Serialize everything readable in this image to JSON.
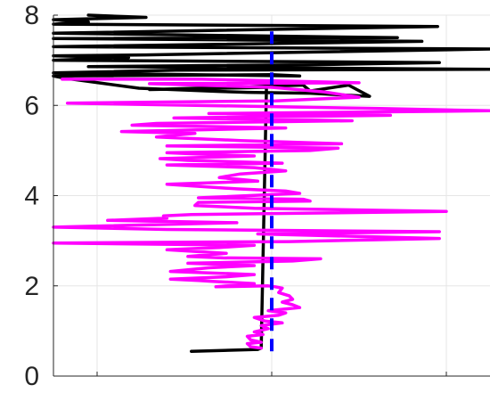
{
  "chart_data": {
    "type": "line",
    "title": "",
    "xlabel": "",
    "ylabel": "",
    "xlim": [
      -1.25,
      1.25
    ],
    "ylim": [
      0,
      8
    ],
    "xticks": [
      -1,
      0,
      1
    ],
    "yticks": [
      0,
      2,
      4,
      6,
      8
    ],
    "ytick_labels": [
      "0",
      "2",
      "4",
      "6",
      "8"
    ],
    "grid": true,
    "legend": "none",
    "series": [
      {
        "color": "#000000",
        "style": "solid",
        "points": [
          [
            -0.46,
            0.55
          ],
          [
            -0.08,
            0.59
          ],
          [
            -0.06,
            0.62
          ],
          [
            -0.03,
            6.4
          ],
          [
            -0.7,
            6.35
          ],
          [
            -0.08,
            6.42
          ],
          [
            0.18,
            6.45
          ],
          [
            0.22,
            6.32
          ],
          [
            0.44,
            6.45
          ],
          [
            0.56,
            6.2
          ],
          [
            0.22,
            6.27
          ],
          [
            -0.14,
            6.29
          ],
          [
            -0.3,
            6.31
          ],
          [
            -0.76,
            6.38
          ],
          [
            -1.18,
            6.6
          ],
          [
            -1.25,
            6.65
          ],
          [
            0.0,
            6.68
          ],
          [
            0.16,
            6.65
          ],
          [
            -1.25,
            6.72
          ],
          [
            -0.9,
            6.75
          ],
          [
            -0.55,
            6.78
          ],
          [
            1.25,
            6.8
          ],
          [
            -1.05,
            6.86
          ],
          [
            0.2,
            6.9
          ],
          [
            0.96,
            6.95
          ],
          [
            -1.25,
            7.0
          ],
          [
            -0.82,
            7.06
          ],
          [
            -1.25,
            7.1
          ],
          [
            -0.72,
            7.12
          ],
          [
            1.25,
            7.25
          ],
          [
            -1.25,
            7.3
          ],
          [
            0.86,
            7.42
          ],
          [
            -1.25,
            7.48
          ],
          [
            0.72,
            7.5
          ],
          [
            -1.25,
            7.6
          ],
          [
            0.95,
            7.75
          ],
          [
            -1.25,
            7.8
          ],
          [
            -1.05,
            7.85
          ],
          [
            -1.25,
            7.9
          ],
          [
            -0.72,
            7.95
          ],
          [
            -1.05,
            8.0
          ]
        ]
      },
      {
        "color": "#ff00ff",
        "style": "solid",
        "points": [
          [
            -0.06,
            0.62
          ],
          [
            -0.12,
            0.65
          ],
          [
            -0.14,
            0.72
          ],
          [
            -0.06,
            0.75
          ],
          [
            -0.12,
            0.8
          ],
          [
            -0.14,
            0.88
          ],
          [
            -0.05,
            0.92
          ],
          [
            -0.1,
            0.98
          ],
          [
            -0.02,
            1.05
          ],
          [
            -0.06,
            1.12
          ],
          [
            0.06,
            1.18
          ],
          [
            -0.04,
            1.22
          ],
          [
            -0.1,
            1.3
          ],
          [
            0.04,
            1.35
          ],
          [
            0.08,
            1.4
          ],
          [
            -0.02,
            1.45
          ],
          [
            0.16,
            1.52
          ],
          [
            0.12,
            1.58
          ],
          [
            0.06,
            1.64
          ],
          [
            0.12,
            1.7
          ],
          [
            0.1,
            1.78
          ],
          [
            0.04,
            1.85
          ],
          [
            0.06,
            1.95
          ],
          [
            0.02,
            1.98
          ],
          [
            -0.02,
            2.0
          ],
          [
            -0.32,
            1.98
          ],
          [
            -0.1,
            2.05
          ],
          [
            -0.34,
            2.1
          ],
          [
            -0.42,
            2.12
          ],
          [
            -0.58,
            2.15
          ],
          [
            -0.26,
            2.2
          ],
          [
            -0.1,
            2.25
          ],
          [
            -0.58,
            2.32
          ],
          [
            -0.36,
            2.4
          ],
          [
            -0.1,
            2.45
          ],
          [
            -0.48,
            2.5
          ],
          [
            0.12,
            2.55
          ],
          [
            0.28,
            2.6
          ],
          [
            -0.28,
            2.62
          ],
          [
            -0.48,
            2.65
          ],
          [
            -0.26,
            2.72
          ],
          [
            -0.6,
            2.8
          ],
          [
            -0.3,
            2.85
          ],
          [
            -0.1,
            2.9
          ],
          [
            -1.25,
            2.95
          ],
          [
            0.1,
            2.98
          ],
          [
            0.96,
            3.05
          ],
          [
            -0.08,
            3.15
          ],
          [
            0.96,
            3.2
          ],
          [
            -0.6,
            3.25
          ],
          [
            -1.25,
            3.3
          ],
          [
            -0.2,
            3.4
          ],
          [
            -0.94,
            3.45
          ],
          [
            -0.6,
            3.5
          ],
          [
            -0.62,
            3.55
          ],
          [
            -0.46,
            3.58
          ],
          [
            1.0,
            3.65
          ],
          [
            -0.1,
            3.72
          ],
          [
            -0.44,
            3.78
          ],
          [
            -0.42,
            3.85
          ],
          [
            0.22,
            3.88
          ],
          [
            0.18,
            3.92
          ],
          [
            -0.42,
            3.95
          ],
          [
            0.16,
            4.05
          ],
          [
            0.08,
            4.1
          ],
          [
            -0.2,
            4.15
          ],
          [
            -0.6,
            4.25
          ],
          [
            -0.08,
            4.32
          ],
          [
            -0.3,
            4.4
          ],
          [
            -0.18,
            4.48
          ],
          [
            0.08,
            4.55
          ],
          [
            -0.1,
            4.62
          ],
          [
            -0.6,
            4.68
          ],
          [
            0.06,
            4.72
          ],
          [
            -0.48,
            4.78
          ],
          [
            -0.64,
            4.82
          ],
          [
            -0.1,
            4.88
          ],
          [
            -0.42,
            4.92
          ],
          [
            -0.6,
            4.95
          ],
          [
            0.22,
            5.0
          ],
          [
            0.38,
            5.05
          ],
          [
            -0.6,
            5.1
          ],
          [
            0.4,
            5.15
          ],
          [
            -0.18,
            5.22
          ],
          [
            -0.66,
            5.3
          ],
          [
            -0.44,
            5.38
          ],
          [
            -0.86,
            5.42
          ],
          [
            0.08,
            5.5
          ],
          [
            -0.8,
            5.56
          ],
          [
            -0.66,
            5.6
          ],
          [
            0.46,
            5.66
          ],
          [
            -0.56,
            5.72
          ],
          [
            0.68,
            5.78
          ],
          [
            -0.36,
            5.82
          ],
          [
            1.25,
            5.88
          ],
          [
            0.62,
            5.93
          ],
          [
            -1.17,
            6.05
          ],
          [
            0.02,
            6.1
          ],
          [
            0.5,
            6.18
          ],
          [
            0.3,
            6.3
          ],
          [
            0.0,
            6.4
          ],
          [
            -0.7,
            6.48
          ],
          [
            0.5,
            6.5
          ],
          [
            -0.4,
            6.58
          ],
          [
            -1.2,
            6.58
          ]
        ]
      },
      {
        "color": "#0000ff",
        "style": "dashed",
        "points": [
          [
            0.0,
            0.55
          ],
          [
            0.0,
            7.7
          ]
        ]
      }
    ]
  }
}
